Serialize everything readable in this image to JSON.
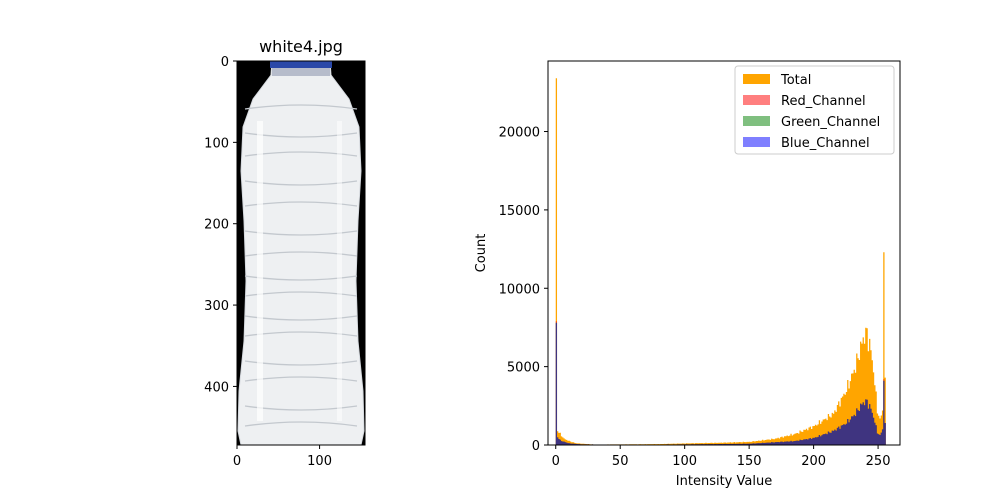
{
  "chart_data": [
    {
      "type": "image",
      "title": "white4.jpg",
      "xlim": [
        0,
        155
      ],
      "ylim": [
        0,
        472
      ],
      "x_ticks": [
        0,
        100
      ],
      "y_ticks": [
        0,
        100,
        200,
        300,
        400
      ],
      "background_color": "#000000",
      "bottle_color": "#eef0f2",
      "cap_color": "#2a48a8"
    },
    {
      "type": "area",
      "title": "",
      "xlabel": "Intensity Value",
      "ylabel": "Count",
      "xlim": [
        -6,
        267
      ],
      "ylim": [
        0,
        24500
      ],
      "x_ticks": [
        0,
        50,
        100,
        150,
        200,
        250
      ],
      "y_ticks": [
        0,
        5000,
        10000,
        15000,
        20000
      ],
      "legend_position": "top-right",
      "series": [
        {
          "name": "Total",
          "color": "#ffa500",
          "points": [
            [
              0,
              23400
            ],
            [
              1,
              900
            ],
            [
              3,
              700
            ],
            [
              6,
              400
            ],
            [
              10,
              250
            ],
            [
              15,
              120
            ],
            [
              20,
              80
            ],
            [
              30,
              30
            ],
            [
              50,
              40
            ],
            [
              80,
              60
            ],
            [
              100,
              100
            ],
            [
              130,
              150
            ],
            [
              150,
              200
            ],
            [
              170,
              400
            ],
            [
              185,
              700
            ],
            [
              200,
              1200
            ],
            [
              215,
              2000
            ],
            [
              225,
              3500
            ],
            [
              232,
              5000
            ],
            [
              237,
              6500
            ],
            [
              240,
              7200
            ],
            [
              243,
              6500
            ],
            [
              246,
              4800
            ],
            [
              249,
              2200
            ],
            [
              251,
              1600
            ],
            [
              253,
              2200
            ],
            [
              254,
              12300
            ],
            [
              255,
              4300
            ]
          ]
        },
        {
          "name": "Red_Channel",
          "color": "#ff0000",
          "points": [
            [
              0,
              7900
            ],
            [
              1,
              500
            ],
            [
              3,
              300
            ],
            [
              6,
              200
            ],
            [
              10,
              100
            ],
            [
              20,
              40
            ],
            [
              50,
              20
            ],
            [
              100,
              40
            ],
            [
              150,
              80
            ],
            [
              185,
              250
            ],
            [
              200,
              450
            ],
            [
              215,
              900
            ],
            [
              225,
              1400
            ],
            [
              232,
              2000
            ],
            [
              237,
              2600
            ],
            [
              240,
              2800
            ],
            [
              243,
              2500
            ],
            [
              246,
              1800
            ],
            [
              249,
              800
            ],
            [
              251,
              600
            ],
            [
              253,
              1000
            ],
            [
              254,
              4200
            ],
            [
              255,
              1400
            ]
          ]
        },
        {
          "name": "Green_Channel",
          "color": "#008000",
          "points": [
            [
              0,
              7800
            ],
            [
              1,
              500
            ],
            [
              3,
              300
            ],
            [
              6,
              200
            ],
            [
              10,
              100
            ],
            [
              20,
              40
            ],
            [
              50,
              20
            ],
            [
              100,
              40
            ],
            [
              150,
              80
            ],
            [
              185,
              250
            ],
            [
              200,
              450
            ],
            [
              215,
              900
            ],
            [
              225,
              1400
            ],
            [
              232,
              2000
            ],
            [
              237,
              2600
            ],
            [
              240,
              2800
            ],
            [
              243,
              2500
            ],
            [
              246,
              1800
            ],
            [
              249,
              800
            ],
            [
              251,
              600
            ],
            [
              253,
              1000
            ],
            [
              254,
              4100
            ],
            [
              255,
              1400
            ]
          ]
        },
        {
          "name": "Blue_Channel",
          "color": "#0000ff",
          "points": [
            [
              0,
              7800
            ],
            [
              1,
              500
            ],
            [
              3,
              300
            ],
            [
              6,
              200
            ],
            [
              10,
              100
            ],
            [
              20,
              40
            ],
            [
              50,
              20
            ],
            [
              100,
              40
            ],
            [
              150,
              80
            ],
            [
              185,
              250
            ],
            [
              200,
              450
            ],
            [
              215,
              900
            ],
            [
              225,
              1400
            ],
            [
              232,
              2000
            ],
            [
              237,
              2600
            ],
            [
              240,
              2800
            ],
            [
              243,
              2500
            ],
            [
              246,
              1800
            ],
            [
              249,
              800
            ],
            [
              251,
              600
            ],
            [
              253,
              1000
            ],
            [
              254,
              4100
            ],
            [
              255,
              1400
            ]
          ]
        }
      ]
    }
  ]
}
